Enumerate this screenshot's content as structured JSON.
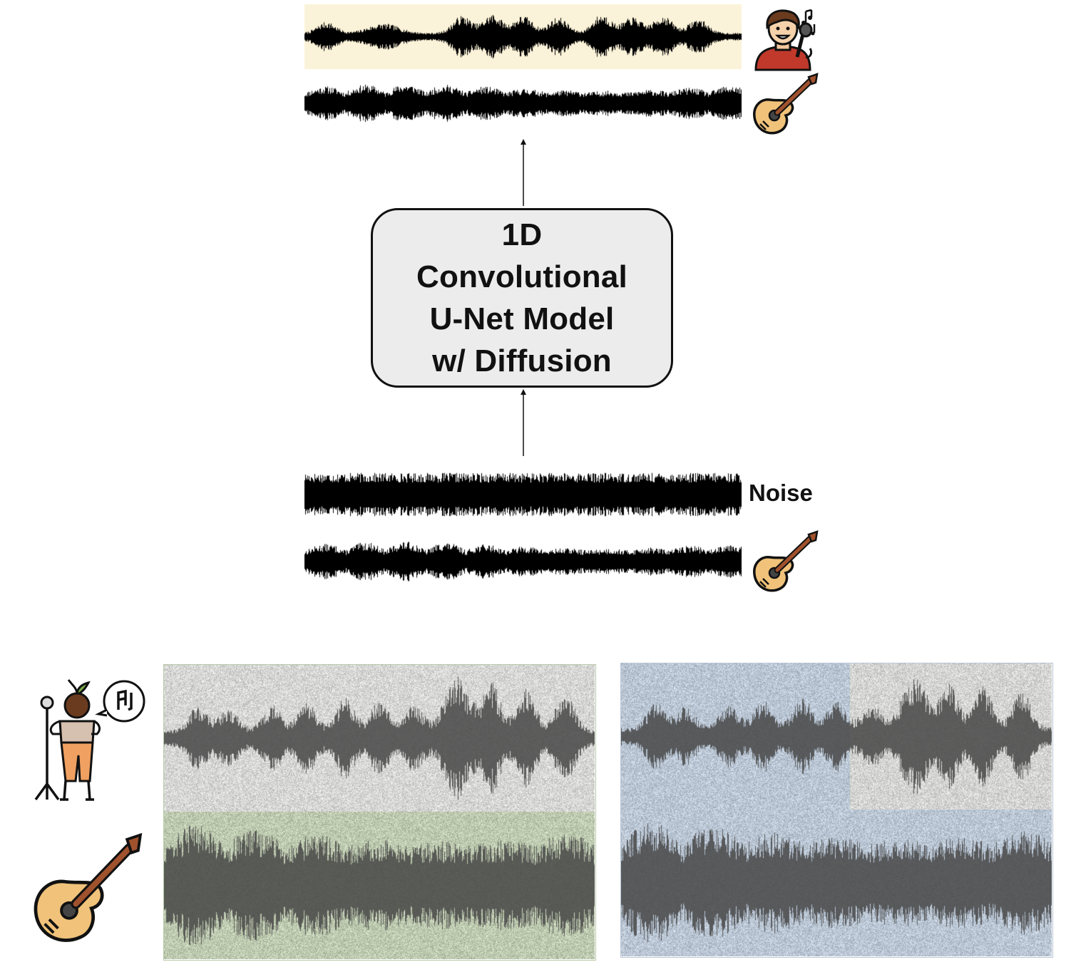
{
  "model": {
    "line1": "1D",
    "line2": "Convolutional",
    "line3": "U-Net Model",
    "line4": "w/ Diffusion"
  },
  "input": {
    "noise_label": "Noise"
  },
  "icons": {
    "singer_male": "singer-male-icon",
    "guitar": "acoustic-guitar-icon",
    "singer_female": "singer-female-icon"
  },
  "colors": {
    "vocal_highlight": "#fbf3d9",
    "green_panel": "#c5cfb7",
    "grey_panel": "#d9d9d9",
    "blue_panel": "#c2ccd8",
    "waveform": "#000000",
    "box_fill": "#ececec"
  }
}
